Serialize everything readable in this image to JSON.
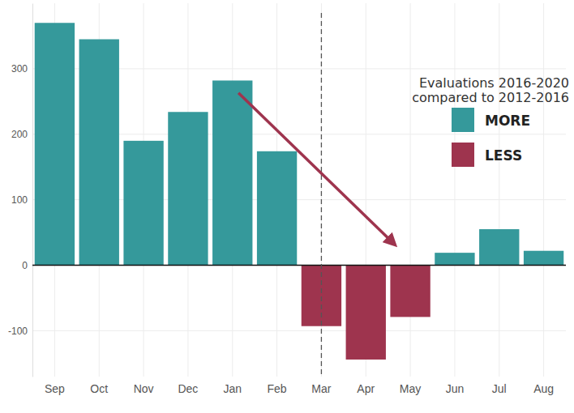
{
  "chart_data": {
    "type": "bar",
    "categories": [
      "Sep",
      "Oct",
      "Nov",
      "Dec",
      "Jan",
      "Feb",
      "Mar",
      "Apr",
      "May",
      "Jun",
      "Jul",
      "Aug"
    ],
    "series": [
      {
        "name": "MORE",
        "color": "#35999b",
        "values": [
          370,
          345,
          190,
          234,
          282,
          174,
          null,
          null,
          null,
          19,
          55,
          22
        ]
      },
      {
        "name": "LESS",
        "color": "#9e344e",
        "values": [
          null,
          null,
          null,
          null,
          null,
          null,
          -93,
          -144,
          -79,
          null,
          null,
          null
        ]
      }
    ],
    "legend_title": [
      "Evaluations 2016-2020",
      "compared to 2012-2016"
    ],
    "annotations": [
      {
        "type": "vline",
        "x": "Mar"
      }
    ],
    "ylim": [
      -170,
      400
    ],
    "yticks": [
      -100,
      0,
      100,
      200,
      300
    ],
    "grid": true,
    "legend": "right"
  }
}
